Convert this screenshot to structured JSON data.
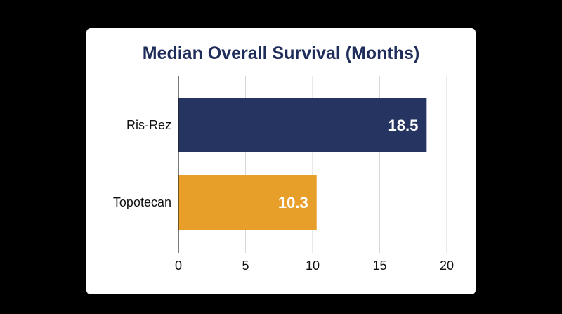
{
  "chart_data": {
    "type": "bar",
    "orientation": "horizontal",
    "title": "Median Overall Survival (Months)",
    "categories": [
      "Ris-Rez",
      "Topotecan"
    ],
    "values": [
      18.5,
      10.3
    ],
    "value_labels": [
      "18.5",
      "10.3"
    ],
    "colors": [
      "#253461",
      "#e89f2a"
    ],
    "xlim": [
      0,
      20
    ],
    "xticks": [
      0,
      5,
      10,
      15,
      20
    ],
    "xtick_labels": [
      "0",
      "5",
      "10",
      "15",
      "20"
    ],
    "grid": true,
    "legend": "none"
  }
}
